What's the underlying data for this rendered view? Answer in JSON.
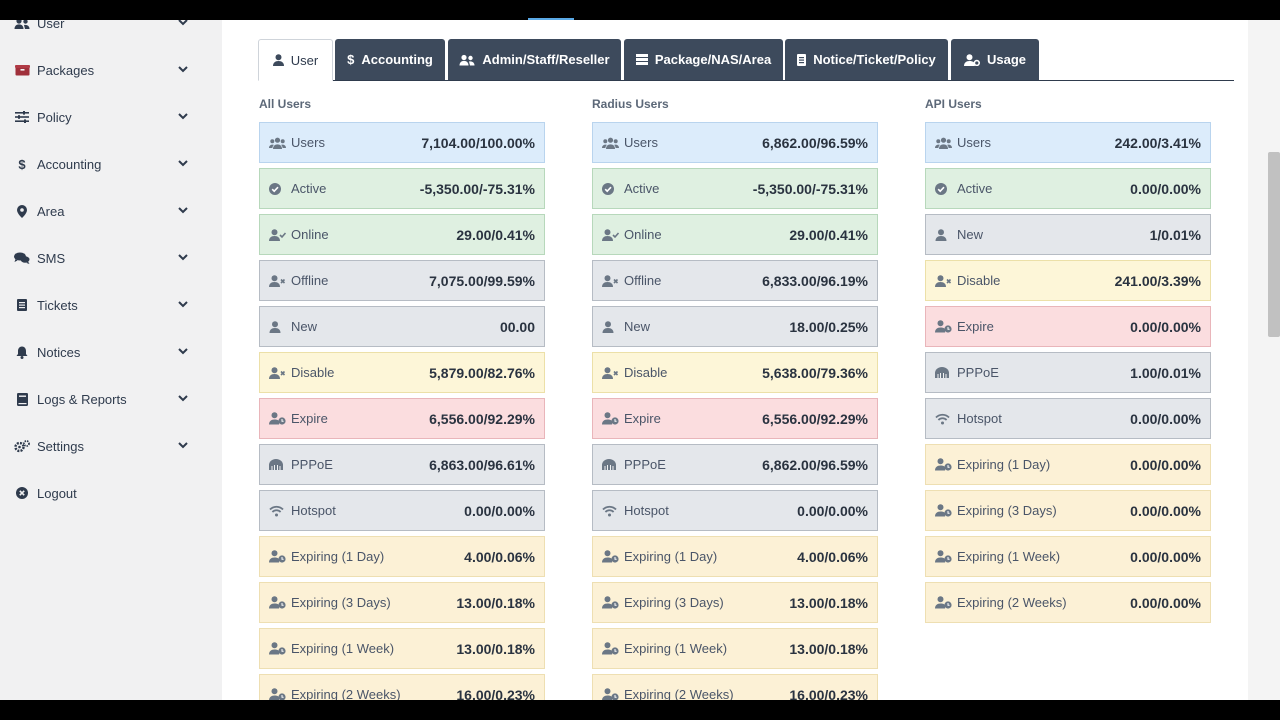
{
  "sidebar": {
    "items": [
      {
        "label": "User",
        "icon": "users-icon"
      },
      {
        "label": "Packages",
        "icon": "box-icon"
      },
      {
        "label": "Policy",
        "icon": "sliders-icon"
      },
      {
        "label": "Accounting",
        "icon": "dollar-icon"
      },
      {
        "label": "Area",
        "icon": "map-pin-icon"
      },
      {
        "label": "SMS",
        "icon": "comments-icon"
      },
      {
        "label": "Tickets",
        "icon": "ticket-icon"
      },
      {
        "label": "Notices",
        "icon": "bell-icon"
      },
      {
        "label": "Logs & Reports",
        "icon": "book-icon"
      },
      {
        "label": "Settings",
        "icon": "cogs-icon"
      },
      {
        "label": "Logout",
        "icon": "logout-icon"
      }
    ]
  },
  "tabs": [
    {
      "label": "User",
      "icon": "user-icon"
    },
    {
      "label": "Accounting",
      "icon": "dollar-icon"
    },
    {
      "label": "Admin/Staff/Reseller",
      "icon": "users-icon"
    },
    {
      "label": "Package/NAS/Area",
      "icon": "server-icon"
    },
    {
      "label": "Notice/Ticket/Policy",
      "icon": "file-icon"
    },
    {
      "label": "Usage",
      "icon": "user-cog-icon"
    }
  ],
  "columns": [
    {
      "title": "All Users",
      "cards": [
        {
          "label": "Users",
          "value": "7,104.00/100.00%",
          "icon": "users-icon",
          "color": "blue"
        },
        {
          "label": "Active",
          "value": "-5,350.00/-75.31%",
          "icon": "check-circle-icon",
          "color": "green"
        },
        {
          "label": "Online",
          "value": "29.00/0.41%",
          "icon": "user-check-icon",
          "color": "green"
        },
        {
          "label": "Offline",
          "value": "7,075.00/99.59%",
          "icon": "user-times-icon",
          "color": "grey"
        },
        {
          "label": "New",
          "value": "00.00",
          "icon": "user-icon",
          "color": "grey"
        },
        {
          "label": "Disable",
          "value": "5,879.00/82.76%",
          "icon": "user-times-icon",
          "color": "yellow"
        },
        {
          "label": "Expire",
          "value": "6,556.00/92.29%",
          "icon": "user-clock-icon",
          "color": "red"
        },
        {
          "label": "PPPoE",
          "value": "6,863.00/96.61%",
          "icon": "router-icon",
          "color": "grey"
        },
        {
          "label": "Hotspot",
          "value": "0.00/0.00%",
          "icon": "wifi-icon",
          "color": "grey"
        },
        {
          "label": "Expiring (1 Day)",
          "value": "4.00/0.06%",
          "icon": "user-clock-icon",
          "color": "peach"
        },
        {
          "label": "Expiring (3 Days)",
          "value": "13.00/0.18%",
          "icon": "user-clock-icon",
          "color": "peach"
        },
        {
          "label": "Expiring (1 Week)",
          "value": "13.00/0.18%",
          "icon": "user-clock-icon",
          "color": "peach"
        },
        {
          "label": "Expiring (2 Weeks)",
          "value": "16.00/0.23%",
          "icon": "user-clock-icon",
          "color": "peach"
        }
      ]
    },
    {
      "title": "Radius Users",
      "cards": [
        {
          "label": "Users",
          "value": "6,862.00/96.59%",
          "icon": "users-icon",
          "color": "blue"
        },
        {
          "label": "Active",
          "value": "-5,350.00/-75.31%",
          "icon": "check-circle-icon",
          "color": "green"
        },
        {
          "label": "Online",
          "value": "29.00/0.41%",
          "icon": "user-check-icon",
          "color": "green"
        },
        {
          "label": "Offline",
          "value": "6,833.00/96.19%",
          "icon": "user-times-icon",
          "color": "grey"
        },
        {
          "label": "New",
          "value": "18.00/0.25%",
          "icon": "user-icon",
          "color": "grey"
        },
        {
          "label": "Disable",
          "value": "5,638.00/79.36%",
          "icon": "user-times-icon",
          "color": "yellow"
        },
        {
          "label": "Expire",
          "value": "6,556.00/92.29%",
          "icon": "user-clock-icon",
          "color": "red"
        },
        {
          "label": "PPPoE",
          "value": "6,862.00/96.59%",
          "icon": "router-icon",
          "color": "grey"
        },
        {
          "label": "Hotspot",
          "value": "0.00/0.00%",
          "icon": "wifi-icon",
          "color": "grey"
        },
        {
          "label": "Expiring (1 Day)",
          "value": "4.00/0.06%",
          "icon": "user-clock-icon",
          "color": "peach"
        },
        {
          "label": "Expiring (3 Days)",
          "value": "13.00/0.18%",
          "icon": "user-clock-icon",
          "color": "peach"
        },
        {
          "label": "Expiring (1 Week)",
          "value": "13.00/0.18%",
          "icon": "user-clock-icon",
          "color": "peach"
        },
        {
          "label": "Expiring (2 Weeks)",
          "value": "16.00/0.23%",
          "icon": "user-clock-icon",
          "color": "peach"
        }
      ]
    },
    {
      "title": "API Users",
      "cards": [
        {
          "label": "Users",
          "value": "242.00/3.41%",
          "icon": "users-icon",
          "color": "blue"
        },
        {
          "label": "Active",
          "value": "0.00/0.00%",
          "icon": "check-circle-icon",
          "color": "green"
        },
        {
          "label": "New",
          "value": "1/0.01%",
          "icon": "user-icon",
          "color": "grey"
        },
        {
          "label": "Disable",
          "value": "241.00/3.39%",
          "icon": "user-times-icon",
          "color": "yellow"
        },
        {
          "label": "Expire",
          "value": "0.00/0.00%",
          "icon": "user-clock-icon",
          "color": "red"
        },
        {
          "label": "PPPoE",
          "value": "1.00/0.01%",
          "icon": "router-icon",
          "color": "grey"
        },
        {
          "label": "Hotspot",
          "value": "0.00/0.00%",
          "icon": "wifi-icon",
          "color": "grey"
        },
        {
          "label": "Expiring (1 Day)",
          "value": "0.00/0.00%",
          "icon": "user-clock-icon",
          "color": "peach"
        },
        {
          "label": "Expiring (3 Days)",
          "value": "0.00/0.00%",
          "icon": "user-clock-icon",
          "color": "peach"
        },
        {
          "label": "Expiring (1 Week)",
          "value": "0.00/0.00%",
          "icon": "user-clock-icon",
          "color": "peach"
        },
        {
          "label": "Expiring (2 Weeks)",
          "value": "0.00/0.00%",
          "icon": "user-clock-icon",
          "color": "peach"
        }
      ]
    }
  ]
}
